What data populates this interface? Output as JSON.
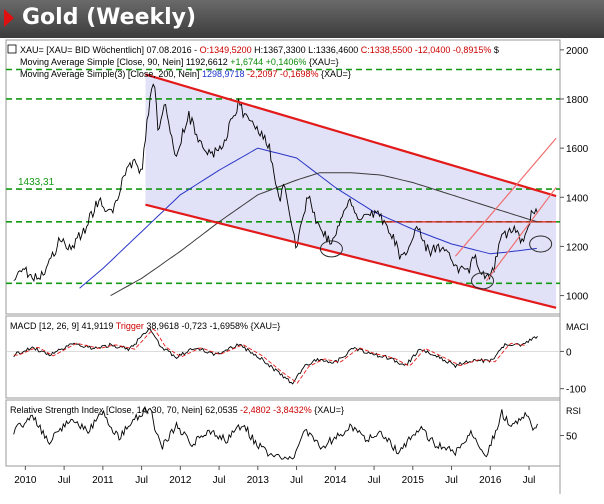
{
  "header": {
    "title": "Gold (Weekly)"
  },
  "chart_data": {
    "type": "line",
    "main": {
      "legend": [
        {
          "text": "XAU=  [XAU= BID Wöchentlich] 07.08.2016 - ",
          "color": "#000000"
        },
        {
          "text": "O:1349,5200",
          "color": "#cc0000"
        },
        {
          "text": " H:1367,3300 L:1336,4600 ",
          "color": "#000000"
        },
        {
          "text": "C:1338,5500 -12,0400 -0,8915%",
          "color": "#cc0000"
        },
        {
          "text": " $",
          "color": "#000000"
        }
      ],
      "ma90_label_parts": [
        {
          "text": "Moving Average Simple [Close, 90, Nein] 1192,6612 ",
          "color": "#000000"
        },
        {
          "text": "+1,6744 +0,1406%",
          "color": "#0a8a0a"
        },
        {
          "text": " {XAU=}",
          "color": "#000000"
        }
      ],
      "ma200_label_parts": [
        {
          "text": "Moving Average Simple(3) [Close, 200, Nein] ",
          "color": "#000000"
        },
        {
          "text": "1298,9718",
          "color": "#1a32cc"
        },
        {
          "text": " -2,2097 -0,1698%",
          "color": "#cc0000"
        },
        {
          "text": " {XAU=}",
          "color": "#000000"
        }
      ],
      "y_ticks": [
        1000,
        1200,
        1400,
        1600,
        1800,
        2000
      ],
      "ylim": [
        925,
        2040
      ],
      "level_lines": [
        1050,
        1433.31,
        1800,
        1920,
        1300
      ],
      "level_label": "1433,31",
      "channel_upper": [
        [
          2011.55,
          1900
        ],
        [
          2016.85,
          1405
        ]
      ],
      "channel_lower": [
        [
          2011.55,
          1370
        ],
        [
          2016.85,
          950
        ]
      ],
      "upchannel_upper": [
        [
          2015.55,
          1160
        ],
        [
          2016.85,
          1640
        ]
      ],
      "upchannel_lower": [
        [
          2015.95,
          1060
        ],
        [
          2016.85,
          1440
        ]
      ],
      "resistance_segment": [
        [
          2014.6,
          1300
        ],
        [
          2016.85,
          1300
        ]
      ],
      "circles": [
        {
          "x": 2013.95,
          "y": 1190
        },
        {
          "x": 2015.9,
          "y": 1060
        },
        {
          "x": 2016.65,
          "y": 1210
        }
      ],
      "price_keypoints": [
        [
          2009.85,
          1080
        ],
        [
          2010.0,
          1110
        ],
        [
          2010.1,
          1060
        ],
        [
          2010.3,
          1120
        ],
        [
          2010.45,
          1230
        ],
        [
          2010.55,
          1180
        ],
        [
          2010.75,
          1260
        ],
        [
          2010.95,
          1390
        ],
        [
          2011.1,
          1330
        ],
        [
          2011.3,
          1500
        ],
        [
          2011.4,
          1550
        ],
        [
          2011.5,
          1500
        ],
        [
          2011.6,
          1780
        ],
        [
          2011.66,
          1900
        ],
        [
          2011.72,
          1650
        ],
        [
          2011.8,
          1780
        ],
        [
          2011.95,
          1560
        ],
        [
          2012.1,
          1740
        ],
        [
          2012.3,
          1590
        ],
        [
          2012.5,
          1580
        ],
        [
          2012.75,
          1780
        ],
        [
          2012.9,
          1700
        ],
        [
          2013.05,
          1660
        ],
        [
          2013.15,
          1600
        ],
        [
          2013.28,
          1380
        ],
        [
          2013.35,
          1460
        ],
        [
          2013.45,
          1250
        ],
        [
          2013.5,
          1200
        ],
        [
          2013.65,
          1410
        ],
        [
          2013.8,
          1260
        ],
        [
          2013.95,
          1220
        ],
        [
          2014.0,
          1240
        ],
        [
          2014.2,
          1390
        ],
        [
          2014.3,
          1290
        ],
        [
          2014.5,
          1340
        ],
        [
          2014.6,
          1310
        ],
        [
          2014.75,
          1230
        ],
        [
          2014.85,
          1150
        ],
        [
          2014.95,
          1200
        ],
        [
          2015.05,
          1290
        ],
        [
          2015.2,
          1180
        ],
        [
          2015.4,
          1200
        ],
        [
          2015.55,
          1120
        ],
        [
          2015.7,
          1090
        ],
        [
          2015.8,
          1160
        ],
        [
          2015.95,
          1060
        ],
        [
          2016.05,
          1110
        ],
        [
          2016.15,
          1240
        ],
        [
          2016.3,
          1270
        ],
        [
          2016.4,
          1220
        ],
        [
          2016.5,
          1290
        ],
        [
          2016.55,
          1350
        ],
        [
          2016.6,
          1330
        ],
        [
          2016.62,
          1338.55
        ]
      ],
      "ma200_keypoints": [
        [
          2010.7,
          1030
        ],
        [
          2011.0,
          1110
        ],
        [
          2011.5,
          1260
        ],
        [
          2012.0,
          1410
        ],
        [
          2012.5,
          1510
        ],
        [
          2013.0,
          1600
        ],
        [
          2013.5,
          1560
        ],
        [
          2014.0,
          1440
        ],
        [
          2014.5,
          1340
        ],
        [
          2015.0,
          1270
        ],
        [
          2015.5,
          1210
        ],
        [
          2016.0,
          1170
        ],
        [
          2016.3,
          1180
        ],
        [
          2016.62,
          1192.66
        ]
      ],
      "ma40_keypoints": [
        [
          2011.1,
          1000
        ],
        [
          2011.5,
          1070
        ],
        [
          2012.0,
          1180
        ],
        [
          2012.5,
          1300
        ],
        [
          2013.0,
          1410
        ],
        [
          2013.5,
          1470
        ],
        [
          2013.8,
          1500
        ],
        [
          2014.2,
          1500
        ],
        [
          2014.6,
          1490
        ],
        [
          2015.0,
          1460
        ],
        [
          2015.5,
          1410
        ],
        [
          2016.0,
          1360
        ],
        [
          2016.4,
          1320
        ],
        [
          2016.62,
          1298.97
        ]
      ]
    },
    "macd": {
      "label_parts": [
        {
          "text": "MACD [12, 26, 9] 41,9119 ",
          "color": "#000000"
        },
        {
          "text": "Trigger",
          "color": "#cc0000"
        },
        {
          "text": " 38,9618 -0,723 -1,6958% {XAU=}",
          "color": "#000000"
        }
      ],
      "axis_title": "MACI",
      "y_ticks": [
        -100,
        0
      ],
      "ylim": [
        -125,
        95
      ],
      "keypoints": [
        [
          2009.85,
          -10
        ],
        [
          2010.1,
          12
        ],
        [
          2010.3,
          -12
        ],
        [
          2010.6,
          22
        ],
        [
          2010.9,
          8
        ],
        [
          2011.1,
          18
        ],
        [
          2011.35,
          6
        ],
        [
          2011.6,
          62
        ],
        [
          2011.75,
          12
        ],
        [
          2011.95,
          -15
        ],
        [
          2012.2,
          10
        ],
        [
          2012.45,
          -8
        ],
        [
          2012.75,
          18
        ],
        [
          2013.0,
          -12
        ],
        [
          2013.25,
          -55
        ],
        [
          2013.45,
          -85
        ],
        [
          2013.6,
          -40
        ],
        [
          2013.8,
          -20
        ],
        [
          2014.0,
          -30
        ],
        [
          2014.25,
          10
        ],
        [
          2014.45,
          -6
        ],
        [
          2014.7,
          -18
        ],
        [
          2014.9,
          -40
        ],
        [
          2015.1,
          8
        ],
        [
          2015.3,
          -12
        ],
        [
          2015.55,
          -38
        ],
        [
          2015.8,
          -22
        ],
        [
          2016.0,
          -28
        ],
        [
          2016.2,
          22
        ],
        [
          2016.4,
          16
        ],
        [
          2016.62,
          41.91
        ]
      ]
    },
    "rsi": {
      "label_parts": [
        {
          "text": "Relative Strength Index [Close, 14, 30, 70, Nein] 62,0535 ",
          "color": "#000000"
        },
        {
          "text": "-2,4802 -3,8432%",
          "color": "#cc0000"
        },
        {
          "text": " {XAU=}",
          "color": "#000000"
        }
      ],
      "axis_title": "RSI",
      "y_ticks": [
        50
      ],
      "ylim": [
        20,
        85
      ],
      "keypoints": [
        [
          2009.85,
          55
        ],
        [
          2010.1,
          68
        ],
        [
          2010.3,
          42
        ],
        [
          2010.55,
          65
        ],
        [
          2010.8,
          55
        ],
        [
          2011.0,
          72
        ],
        [
          2011.2,
          48
        ],
        [
          2011.4,
          66
        ],
        [
          2011.6,
          78
        ],
        [
          2011.75,
          38
        ],
        [
          2011.95,
          60
        ],
        [
          2012.15,
          42
        ],
        [
          2012.4,
          55
        ],
        [
          2012.6,
          45
        ],
        [
          2012.8,
          62
        ],
        [
          2013.0,
          40
        ],
        [
          2013.2,
          30
        ],
        [
          2013.45,
          26
        ],
        [
          2013.6,
          58
        ],
        [
          2013.8,
          38
        ],
        [
          2014.0,
          48
        ],
        [
          2014.2,
          60
        ],
        [
          2014.4,
          45
        ],
        [
          2014.6,
          52
        ],
        [
          2014.8,
          35
        ],
        [
          2014.95,
          45
        ],
        [
          2015.1,
          58
        ],
        [
          2015.3,
          40
        ],
        [
          2015.55,
          34
        ],
        [
          2015.75,
          52
        ],
        [
          2015.95,
          30
        ],
        [
          2016.15,
          72
        ],
        [
          2016.3,
          58
        ],
        [
          2016.45,
          70
        ],
        [
          2016.55,
          58
        ],
        [
          2016.62,
          62.05
        ]
      ]
    },
    "x_axis": {
      "xlim": [
        2009.75,
        2016.9
      ],
      "ticks": [
        {
          "label": "2010",
          "x": 2010.0
        },
        {
          "label": "Jul",
          "x": 2010.5
        },
        {
          "label": "2011",
          "x": 2011.0
        },
        {
          "label": "Jul",
          "x": 2011.5
        },
        {
          "label": "2012",
          "x": 2012.0
        },
        {
          "label": "Jul",
          "x": 2012.5
        },
        {
          "label": "2013",
          "x": 2013.0
        },
        {
          "label": "Jul",
          "x": 2013.5
        },
        {
          "label": "2014",
          "x": 2014.0
        },
        {
          "label": "Jul",
          "x": 2014.5
        },
        {
          "label": "2015",
          "x": 2015.0
        },
        {
          "label": "Jul",
          "x": 2015.5
        },
        {
          "label": "2016",
          "x": 2016.0
        },
        {
          "label": "Jul",
          "x": 2016.5
        }
      ]
    },
    "colors": {
      "price": "#000000",
      "ma200": "#2a36c8",
      "ma40": "#3c3c3c",
      "channel": "#e31a1a",
      "upchannel": "#f07070",
      "levels": "#139a13",
      "fill": "#dcdcf6",
      "trigger": "#e31a1a"
    }
  }
}
